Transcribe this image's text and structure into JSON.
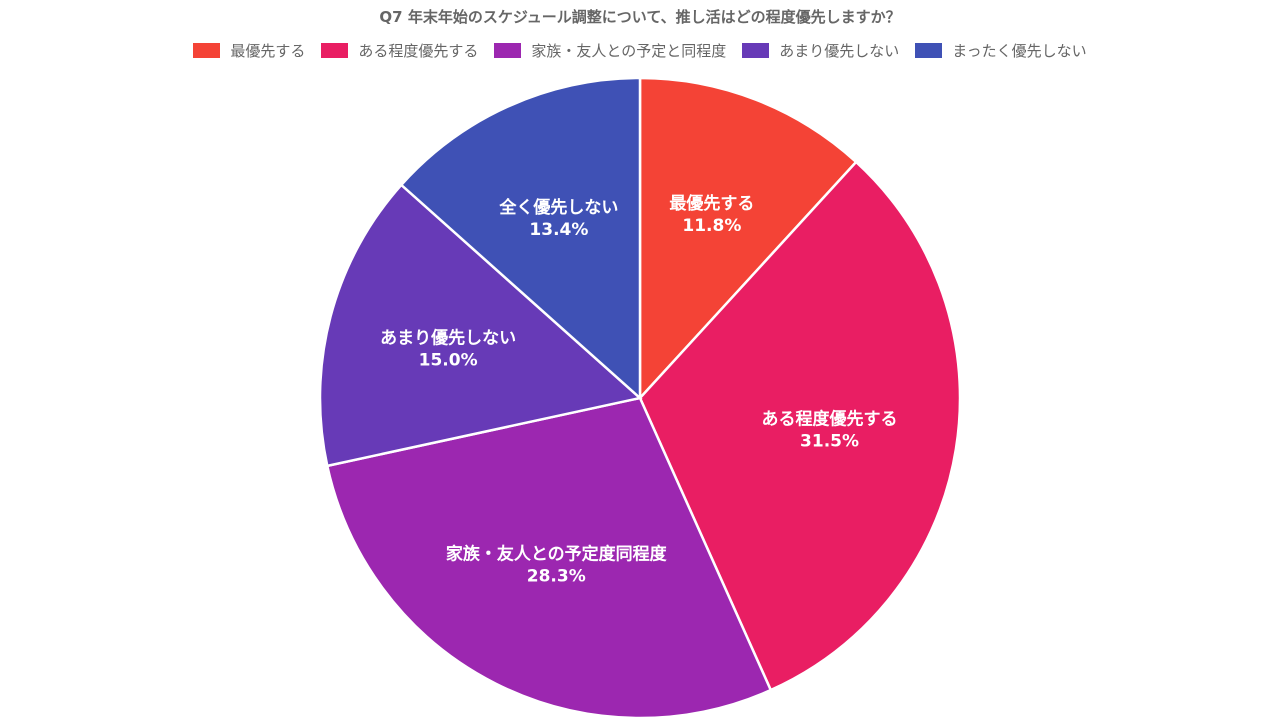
{
  "chart_data": {
    "type": "pie",
    "title": "Q7 年末年始のスケジュール調整について、推し活はどの程度優先しますか？",
    "legend_position": "top",
    "legend": [
      {
        "label": "最優先する",
        "color": "#f44336"
      },
      {
        "label": "ある程度優先する",
        "color": "#e91e63"
      },
      {
        "label": "家族・友人との予定と同程度",
        "color": "#9c27b0"
      },
      {
        "label": "あまり優先しない",
        "color": "#673ab7"
      },
      {
        "label": "まったく優先しない",
        "color": "#3f51b5"
      }
    ],
    "slices": [
      {
        "label": "最優先する",
        "value": 11.8,
        "value_label": "11.8%",
        "color": "#f44336"
      },
      {
        "label": "ある程度優先する",
        "value": 31.5,
        "value_label": "31.5%",
        "color": "#e91e63"
      },
      {
        "label": "家族・友人との予定度同程度",
        "value": 28.3,
        "value_label": "28.3%",
        "color": "#9c27b0"
      },
      {
        "label": "あまり優先しない",
        "value": 15.0,
        "value_label": "15.0%",
        "color": "#673ab7"
      },
      {
        "label": "全く優先しない",
        "value": 13.4,
        "value_label": "13.4%",
        "color": "#3f51b5"
      }
    ]
  }
}
